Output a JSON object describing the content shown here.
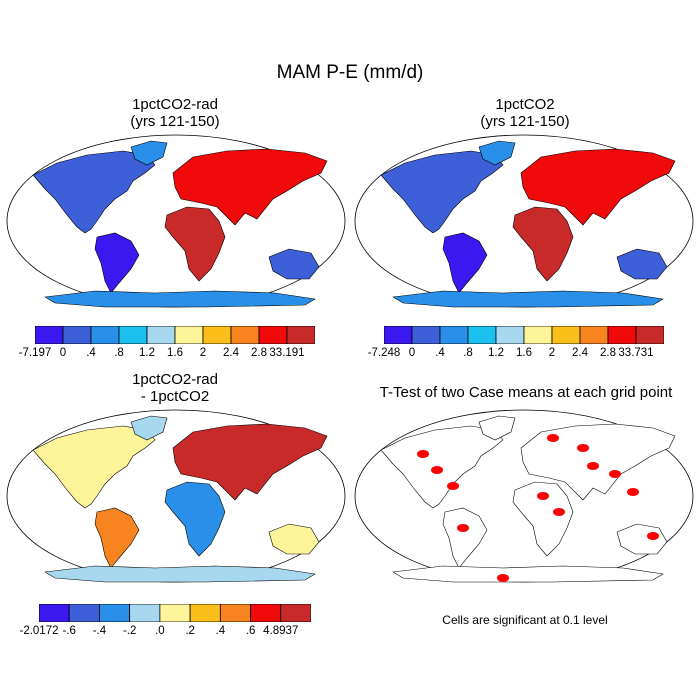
{
  "figure": {
    "title": "MAM P-E (mm/d)"
  },
  "panels": [
    {
      "title": "1pctCO2-rad\n(yrs 121-150)",
      "type": "filled-contour map",
      "colorbar": {
        "colors": [
          "#3b18f0",
          "#3d5fd8",
          "#2a8fe8",
          "#1cc1f0",
          "#a8d8f0",
          "#fef59a",
          "#fbbf1c",
          "#f7841f",
          "#f00a0a",
          "#c82a2a"
        ],
        "labels": [
          "-7.197",
          "0",
          ".4",
          ".8",
          "1.2",
          "1.6",
          "2",
          "2.4",
          "2.8",
          "33.191"
        ]
      }
    },
    {
      "title": "1pctCO2\n(yrs 121-150)",
      "type": "filled-contour map",
      "colorbar": {
        "colors": [
          "#3b18f0",
          "#3d5fd8",
          "#2a8fe8",
          "#1cc1f0",
          "#a8d8f0",
          "#fef59a",
          "#fbbf1c",
          "#f7841f",
          "#f00a0a",
          "#c82a2a"
        ],
        "labels": [
          "-7.248",
          "0",
          ".4",
          ".8",
          "1.2",
          "1.6",
          "2",
          "2.4",
          "2.8",
          "33.731"
        ]
      }
    },
    {
      "title": "1pctCO2-rad\n- 1pctCO2",
      "type": "difference map",
      "colorbar": {
        "colors": [
          "#3b18f0",
          "#3d5fd8",
          "#2a8fe8",
          "#a8d8f0",
          "#fef59a",
          "#fbbf1c",
          "#f7841f",
          "#f00a0a",
          "#c82a2a"
        ],
        "labels": [
          "-2.0172",
          "-.6",
          "-.4",
          "-.2",
          ".0",
          ".2",
          ".4",
          ".6",
          "4.8937"
        ]
      }
    },
    {
      "title": "T-Test of two Case means at each grid point",
      "type": "significance map",
      "significance_color": "#ff0000",
      "note": "Cells are significant at 0.1 level"
    }
  ]
}
